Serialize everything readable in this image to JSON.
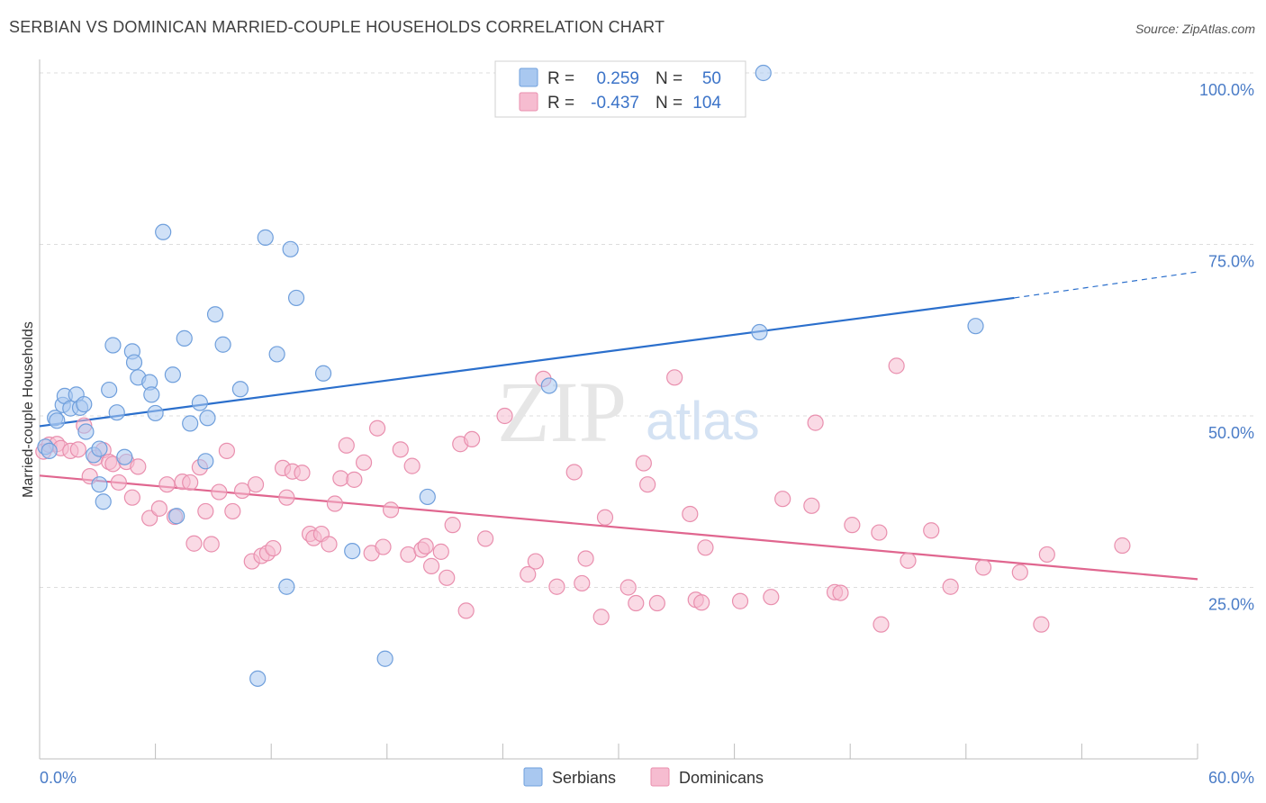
{
  "title": "SERBIAN VS DOMINICAN MARRIED-COUPLE HOUSEHOLDS CORRELATION CHART",
  "source": "Source: ZipAtlas.com",
  "watermark": {
    "part1": "ZIP",
    "part2": "atlas"
  },
  "colors": {
    "serbians_fill": "#a9c8f0",
    "serbians_stroke": "#6f9fdc",
    "serbians_line": "#2b6fcc",
    "dominicans_fill": "#f6bcd0",
    "dominicans_stroke": "#e98fae",
    "dominicans_line": "#e0668f",
    "tick_label": "#4a7cc7",
    "grid": "#dddddd"
  },
  "legend": {
    "rows": [
      {
        "r_label": "R =",
        "r_value": "0.259",
        "n_label": "N =",
        "n_value": "50"
      },
      {
        "r_label": "R =",
        "r_value": "-0.437",
        "n_label": "N =",
        "n_value": "104"
      }
    ]
  },
  "bottom_legend": [
    "Serbians",
    "Dominicans"
  ],
  "chart_data": {
    "type": "scatter",
    "title": "SERBIAN VS DOMINICAN MARRIED-COUPLE HOUSEHOLDS CORRELATION CHART",
    "xlabel": "",
    "ylabel": "Married-couple Households",
    "xlim": [
      0,
      60
    ],
    "ylim": [
      0,
      100
    ],
    "x_tick_labels": [
      "0.0%",
      "60.0%"
    ],
    "y_ticks": [
      25,
      50,
      75,
      100
    ],
    "y_tick_labels": [
      "25.0%",
      "50.0%",
      "75.0%",
      "100.0%"
    ],
    "grid": true,
    "legend_position": "top-center",
    "series": [
      {
        "name": "Serbians",
        "r": 0.259,
        "n": 50,
        "trend": {
          "x0": 0,
          "y0": 48.5,
          "x1": 50.5,
          "y1": 67.2,
          "dashed_to": [
            60,
            71.0
          ]
        },
        "points": [
          [
            0.3,
            45.5
          ],
          [
            0.5,
            44.9
          ],
          [
            0.8,
            49.7
          ],
          [
            0.9,
            49.3
          ],
          [
            1.2,
            51.6
          ],
          [
            1.3,
            52.9
          ],
          [
            1.6,
            51.1
          ],
          [
            1.9,
            53.1
          ],
          [
            2.1,
            51.2
          ],
          [
            2.3,
            51.7
          ],
          [
            2.4,
            47.7
          ],
          [
            2.8,
            44.3
          ],
          [
            3.1,
            45.2
          ],
          [
            3.1,
            40.0
          ],
          [
            3.3,
            37.5
          ],
          [
            3.6,
            53.8
          ],
          [
            3.8,
            60.3
          ],
          [
            4.0,
            50.5
          ],
          [
            4.4,
            44.0
          ],
          [
            4.8,
            59.4
          ],
          [
            4.9,
            57.8
          ],
          [
            5.1,
            55.6
          ],
          [
            5.7,
            54.9
          ],
          [
            5.8,
            53.1
          ],
          [
            6.0,
            50.4
          ],
          [
            6.4,
            76.8
          ],
          [
            6.9,
            56.0
          ],
          [
            7.1,
            35.4
          ],
          [
            7.5,
            61.3
          ],
          [
            7.8,
            48.9
          ],
          [
            8.3,
            51.9
          ],
          [
            8.6,
            43.4
          ],
          [
            8.7,
            49.7
          ],
          [
            9.1,
            64.8
          ],
          [
            9.5,
            60.4
          ],
          [
            10.4,
            53.9
          ],
          [
            11.3,
            11.7
          ],
          [
            11.7,
            76.0
          ],
          [
            12.3,
            59.0
          ],
          [
            12.8,
            25.1
          ],
          [
            13.0,
            74.3
          ],
          [
            13.3,
            67.2
          ],
          [
            14.7,
            56.2
          ],
          [
            16.2,
            30.3
          ],
          [
            17.9,
            14.6
          ],
          [
            20.1,
            38.2
          ],
          [
            26.4,
            54.4
          ],
          [
            37.3,
            62.2
          ],
          [
            37.5,
            100.0
          ],
          [
            48.5,
            63.1
          ]
        ]
      },
      {
        "name": "Dominicans",
        "r": -0.437,
        "n": 104,
        "trend": {
          "x0": 0,
          "y0": 41.3,
          "x1": 60,
          "y1": 26.2
        },
        "points": [
          [
            0.2,
            44.8
          ],
          [
            0.5,
            45.8
          ],
          [
            0.9,
            45.9
          ],
          [
            1.1,
            45.3
          ],
          [
            1.6,
            44.9
          ],
          [
            2.0,
            45.1
          ],
          [
            2.3,
            48.6
          ],
          [
            2.6,
            41.2
          ],
          [
            2.9,
            43.9
          ],
          [
            3.3,
            45.0
          ],
          [
            3.6,
            43.3
          ],
          [
            3.8,
            43.0
          ],
          [
            4.1,
            40.3
          ],
          [
            4.5,
            43.3
          ],
          [
            4.8,
            38.1
          ],
          [
            5.1,
            42.6
          ],
          [
            5.7,
            35.1
          ],
          [
            6.2,
            36.5
          ],
          [
            6.6,
            40.0
          ],
          [
            7.0,
            35.3
          ],
          [
            7.4,
            40.4
          ],
          [
            7.8,
            40.3
          ],
          [
            8.0,
            31.4
          ],
          [
            8.3,
            42.5
          ],
          [
            8.6,
            36.1
          ],
          [
            8.9,
            31.3
          ],
          [
            9.3,
            38.9
          ],
          [
            9.7,
            44.9
          ],
          [
            10.0,
            36.1
          ],
          [
            10.5,
            39.1
          ],
          [
            11.0,
            28.8
          ],
          [
            11.2,
            40.0
          ],
          [
            11.5,
            29.6
          ],
          [
            11.8,
            30.0
          ],
          [
            12.1,
            30.7
          ],
          [
            12.6,
            42.4
          ],
          [
            12.8,
            38.1
          ],
          [
            13.1,
            41.9
          ],
          [
            13.6,
            41.7
          ],
          [
            14.0,
            32.8
          ],
          [
            14.2,
            32.2
          ],
          [
            14.6,
            32.8
          ],
          [
            15.0,
            31.3
          ],
          [
            15.3,
            37.2
          ],
          [
            15.6,
            40.9
          ],
          [
            15.9,
            45.7
          ],
          [
            16.3,
            40.7
          ],
          [
            16.8,
            43.2
          ],
          [
            17.2,
            30.0
          ],
          [
            17.5,
            48.2
          ],
          [
            17.8,
            30.9
          ],
          [
            18.2,
            36.3
          ],
          [
            18.7,
            45.1
          ],
          [
            19.1,
            29.8
          ],
          [
            19.3,
            42.7
          ],
          [
            19.8,
            30.5
          ],
          [
            20.0,
            31.0
          ],
          [
            20.3,
            28.1
          ],
          [
            20.8,
            30.2
          ],
          [
            21.1,
            26.4
          ],
          [
            21.4,
            34.1
          ],
          [
            21.8,
            45.9
          ],
          [
            22.1,
            21.6
          ],
          [
            22.4,
            46.6
          ],
          [
            23.1,
            32.1
          ],
          [
            24.1,
            50.0
          ],
          [
            25.3,
            26.9
          ],
          [
            25.7,
            28.8
          ],
          [
            26.1,
            55.4
          ],
          [
            26.8,
            25.1
          ],
          [
            27.7,
            41.8
          ],
          [
            28.1,
            25.6
          ],
          [
            28.3,
            29.2
          ],
          [
            29.1,
            20.7
          ],
          [
            29.3,
            35.2
          ],
          [
            30.5,
            25.0
          ],
          [
            30.9,
            22.7
          ],
          [
            31.3,
            43.1
          ],
          [
            31.5,
            40.0
          ],
          [
            32.0,
            22.7
          ],
          [
            32.9,
            55.6
          ],
          [
            33.7,
            35.7
          ],
          [
            34.0,
            23.2
          ],
          [
            34.3,
            22.8
          ],
          [
            34.5,
            30.8
          ],
          [
            36.3,
            23.0
          ],
          [
            37.9,
            23.6
          ],
          [
            38.5,
            37.9
          ],
          [
            40.0,
            36.9
          ],
          [
            40.2,
            49.0
          ],
          [
            41.2,
            24.3
          ],
          [
            41.5,
            24.2
          ],
          [
            42.1,
            34.1
          ],
          [
            43.5,
            33.0
          ],
          [
            44.4,
            57.3
          ],
          [
            45.0,
            28.9
          ],
          [
            46.2,
            33.3
          ],
          [
            47.2,
            25.1
          ],
          [
            48.9,
            27.9
          ],
          [
            50.8,
            27.2
          ],
          [
            51.9,
            19.6
          ],
          [
            52.2,
            29.8
          ],
          [
            56.1,
            31.1
          ],
          [
            43.6,
            19.6
          ]
        ]
      }
    ]
  }
}
